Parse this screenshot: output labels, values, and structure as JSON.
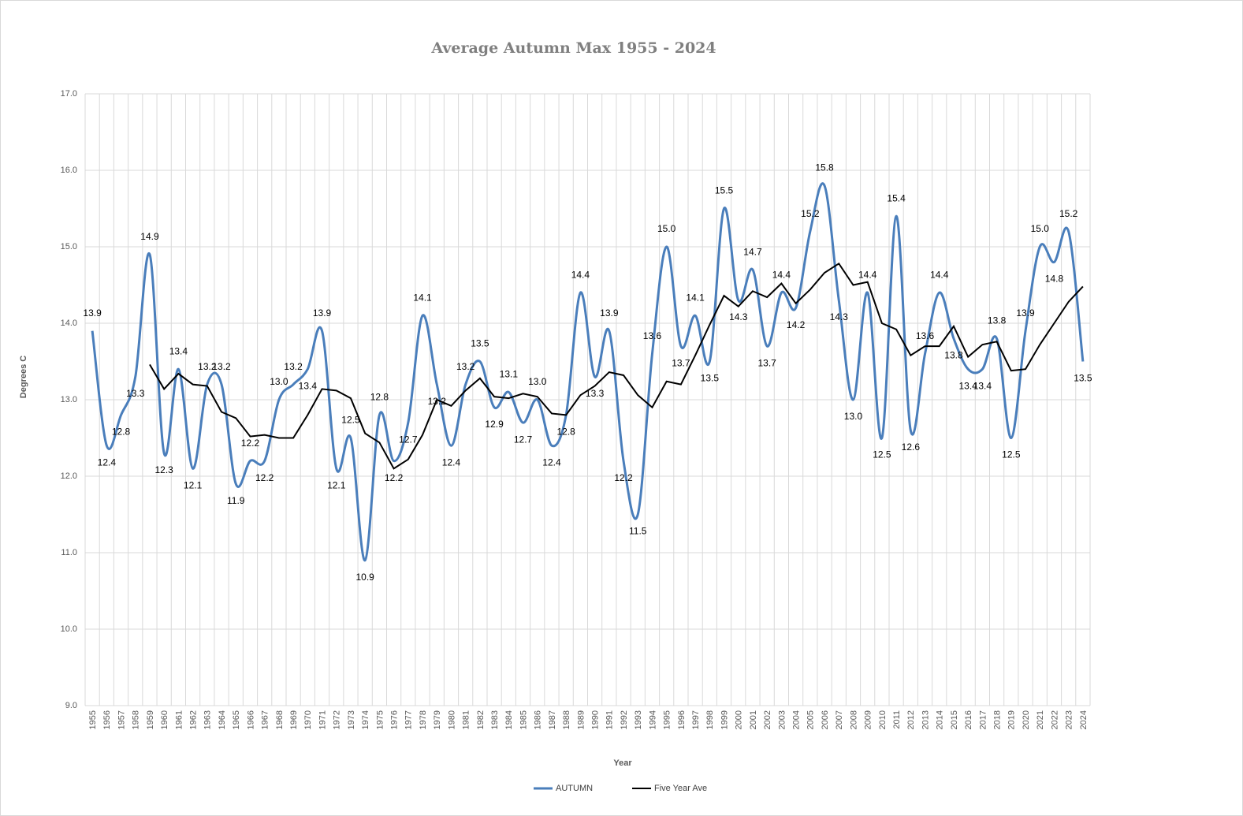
{
  "chart_data": {
    "type": "line",
    "title": "Average Autumn Max 1955 - 2024",
    "x_label": "Year",
    "y_label": "Degrees C",
    "categories": [
      "1955",
      "1956",
      "1957",
      "1958",
      "1959",
      "1960",
      "1961",
      "1962",
      "1963",
      "1964",
      "1965",
      "1966",
      "1967",
      "1968",
      "1969",
      "1970",
      "1971",
      "1972",
      "1973",
      "1974",
      "1975",
      "1976",
      "1977",
      "1978",
      "1979",
      "1980",
      "1981",
      "1982",
      "1983",
      "1984",
      "1985",
      "1986",
      "1987",
      "1988",
      "1989",
      "1990",
      "1991",
      "1992",
      "1993",
      "1994",
      "1995",
      "1996",
      "1997",
      "1998",
      "1999",
      "2000",
      "2001",
      "2002",
      "2003",
      "2004",
      "2005",
      "2006",
      "2007",
      "2008",
      "2009",
      "2010",
      "2011",
      "2012",
      "2013",
      "2014",
      "2015",
      "2016",
      "2017",
      "2018",
      "2019",
      "2020",
      "2021",
      "2022",
      "2023",
      "2024"
    ],
    "series": [
      {
        "name": "AUTUMN",
        "color": "#4a7ebb",
        "smooth": true,
        "values": [
          13.9,
          12.4,
          12.8,
          13.3,
          14.9,
          12.3,
          13.4,
          12.1,
          13.2,
          13.2,
          11.9,
          12.2,
          12.2,
          13.0,
          13.2,
          13.4,
          13.9,
          12.1,
          12.5,
          10.9,
          12.8,
          12.2,
          12.7,
          14.1,
          13.2,
          12.4,
          13.2,
          13.5,
          12.9,
          13.1,
          12.7,
          13.0,
          12.4,
          12.8,
          14.4,
          13.3,
          13.9,
          12.2,
          11.5,
          13.6,
          15.0,
          13.7,
          14.1,
          13.5,
          15.5,
          14.3,
          14.7,
          13.7,
          14.4,
          14.2,
          15.2,
          15.8,
          14.3,
          13.0,
          14.4,
          12.5,
          15.4,
          12.6,
          13.6,
          14.4,
          13.8,
          13.4,
          13.4,
          13.8,
          12.5,
          13.9,
          15.0,
          14.8,
          15.2,
          13.5
        ],
        "value_labels": [
          "13.9",
          "12.4",
          "12.8",
          "13.3",
          "14.9",
          "12.3",
          "13.4",
          "12.1",
          "13.2",
          "13.2",
          "11.9",
          "12.2",
          "12.2",
          "13.0",
          "13.2",
          "13.4",
          "13.9",
          "12.1",
          "12.5",
          "10.9",
          "12.8",
          "12.2",
          "12.7",
          "14.1",
          "13.2",
          "12.4",
          "13.2",
          "13.5",
          "12.9",
          "13.1",
          "12.7",
          "13.0",
          "12.4",
          "12.8",
          "14.4",
          "13.3",
          "13.9",
          "12.2",
          "11.5",
          "13.6",
          "15.0",
          "13.7",
          "14.1",
          "13.5",
          "15.5",
          "14.3",
          "14.7",
          "13.7",
          "14.4",
          "14.2",
          "15.2",
          "15.8",
          "14.3",
          "13.0",
          "14.4",
          "12.5",
          "15.4",
          "12.6",
          "13.6",
          "14.4",
          "13.8",
          "13.4",
          "13.4",
          "13.8",
          "12.5",
          "13.9",
          "15.0",
          "14.8",
          "15.2",
          "13.5"
        ]
      },
      {
        "name": "Five Year Ave",
        "color": "#000000",
        "smooth": false,
        "values": [
          null,
          null,
          null,
          null,
          13.46,
          13.14,
          13.34,
          13.2,
          13.18,
          12.84,
          12.76,
          12.52,
          12.54,
          12.5,
          12.5,
          12.8,
          13.14,
          13.12,
          13.02,
          12.56,
          12.44,
          12.1,
          12.22,
          12.54,
          13.0,
          12.92,
          13.12,
          13.28,
          13.04,
          13.02,
          13.08,
          13.04,
          12.82,
          12.8,
          13.06,
          13.18,
          13.36,
          13.32,
          13.06,
          12.9,
          13.24,
          13.2,
          13.58,
          13.98,
          14.36,
          14.22,
          14.42,
          14.34,
          14.52,
          14.26,
          14.44,
          14.66,
          14.78,
          14.5,
          14.54,
          14.0,
          13.92,
          13.58,
          13.7,
          13.7,
          13.96,
          13.56,
          13.72,
          13.76,
          13.38,
          13.4,
          13.72,
          14.0,
          14.28,
          14.48
        ]
      }
    ],
    "ylim": [
      9,
      17
    ],
    "yticks": [
      {
        "value": 9,
        "label": "9.0"
      },
      {
        "value": 10,
        "label": "10.0"
      },
      {
        "value": 11,
        "label": "11.0"
      },
      {
        "value": 12,
        "label": "12.0"
      },
      {
        "value": 13,
        "label": "13.0"
      },
      {
        "value": 14,
        "label": "14.0"
      },
      {
        "value": 15,
        "label": "15.0"
      },
      {
        "value": 16,
        "label": "16.0"
      },
      {
        "value": 17,
        "label": "17.0"
      }
    ],
    "grid": true,
    "legend": "bottom"
  }
}
